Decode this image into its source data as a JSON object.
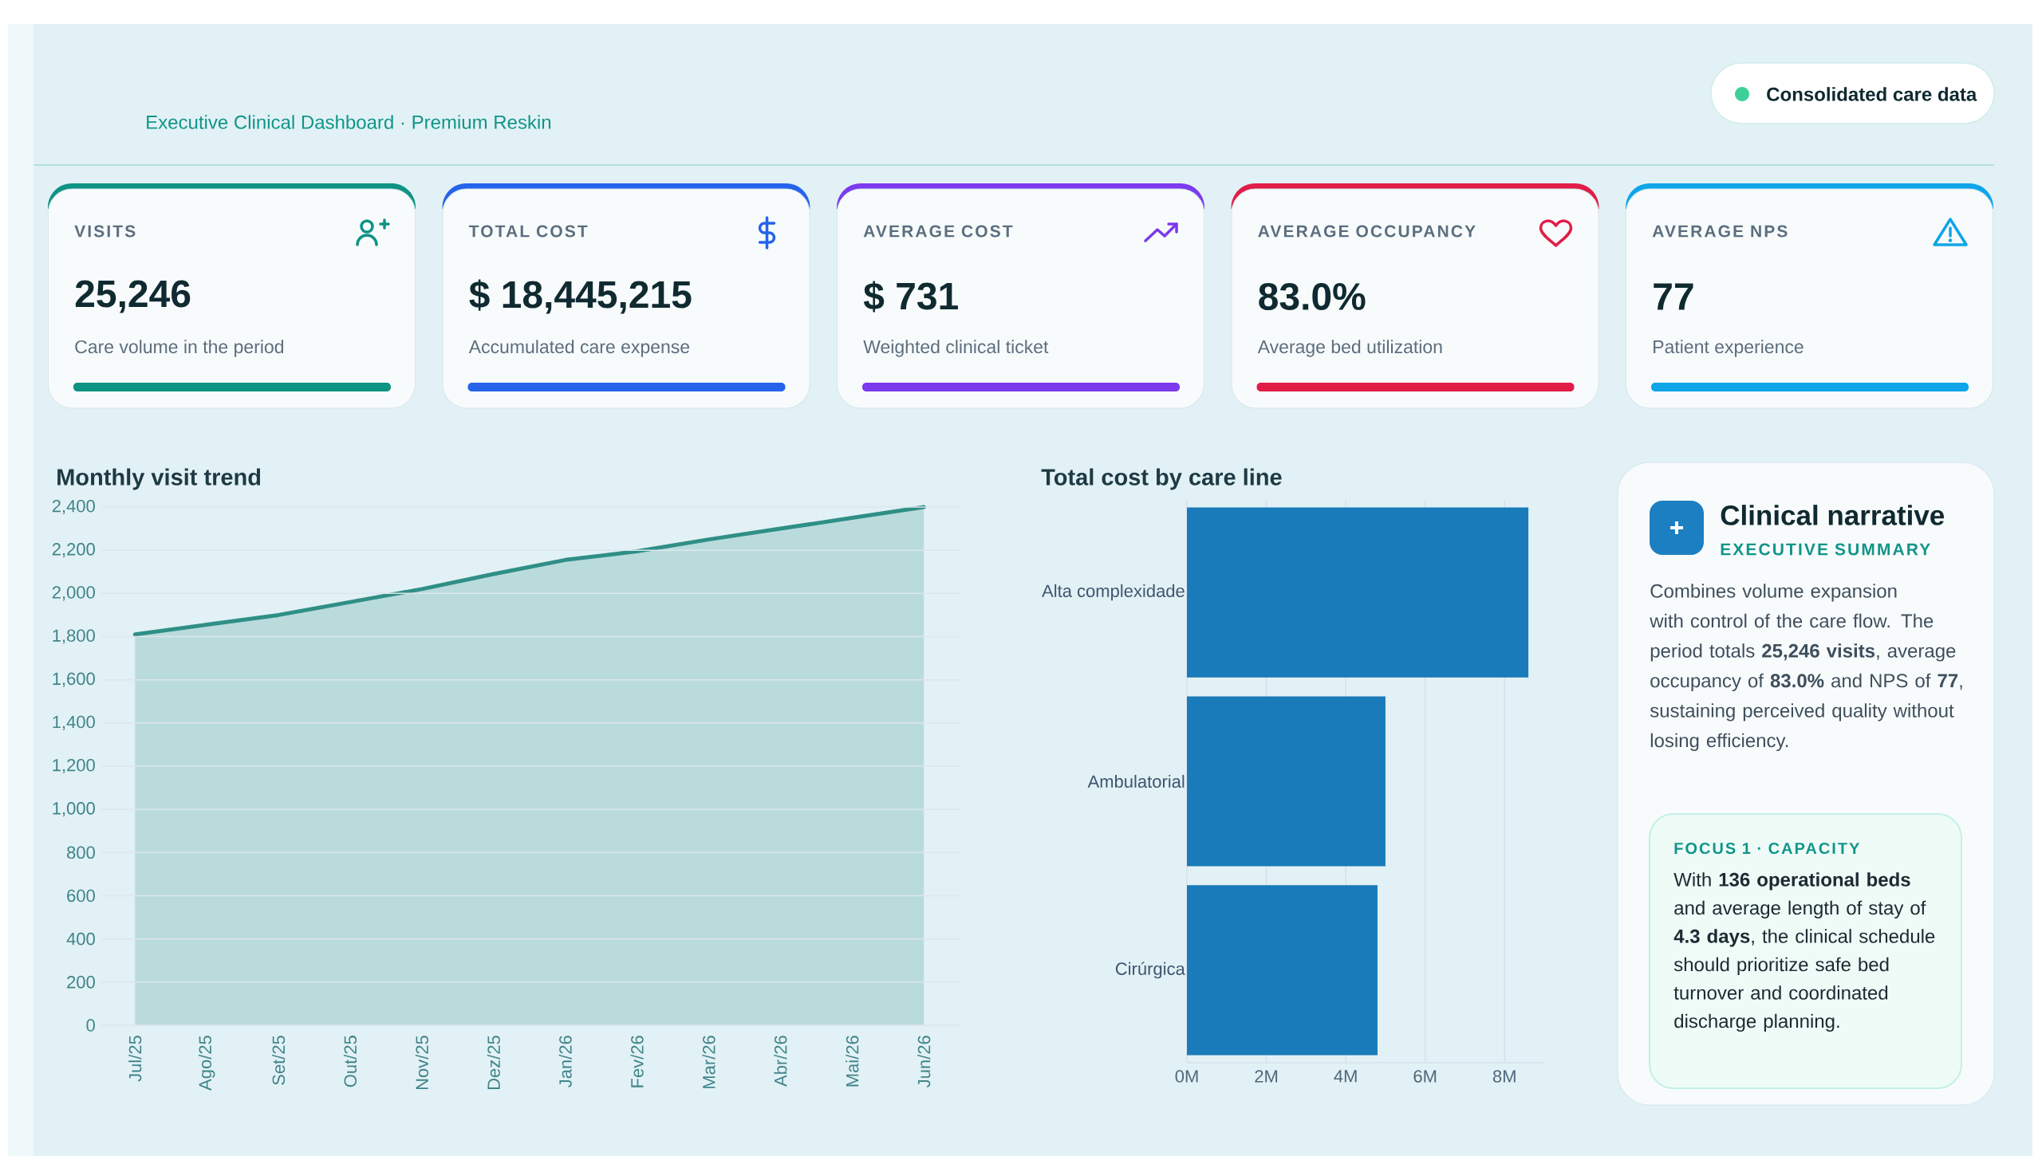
{
  "chart_data": [
    {
      "type": "other",
      "subtitle": "Executive Clinical Dashboard · Premium Reskin",
      "annotations": [
        "Consolidated care data"
      ]
    },
    {
      "type": "other",
      "title": "VISITS",
      "annotations": [
        "25,246",
        "Care volume in the period"
      ],
      "color": "#0e9384"
    },
    {
      "type": "other",
      "title": "TOTAL COST",
      "annotations": [
        "$ 18,445,215",
        "Accumulated care expense"
      ],
      "color": "#2563eb"
    },
    {
      "type": "other",
      "title": "AVERAGE COST",
      "annotations": [
        "$ 731",
        "Weighted clinical ticket"
      ],
      "color": "#7c3aed"
    },
    {
      "type": "other",
      "title": "AVERAGE OCCUPANCY",
      "annotations": [
        "83.0%",
        "Average bed utilization"
      ],
      "color": "#e11d48"
    },
    {
      "type": "other",
      "title": "AVERAGE NPS",
      "annotations": [
        "77",
        "Patient experience"
      ],
      "color": "#0ea5e9"
    },
    {
      "type": "area",
      "title": "Monthly visit trend",
      "categories": [
        "Jul/25",
        "Ago/25",
        "Set/25",
        "Out/25",
        "Nov/25",
        "Dez/25",
        "Jan/26",
        "Fev/26",
        "Mar/26",
        "Abr/26",
        "Mai/26",
        "Jun/26"
      ],
      "values": [
        1810,
        1855,
        1900,
        1960,
        2020,
        2090,
        2155,
        2195,
        2250,
        2300,
        2350,
        2400
      ],
      "color": "#2f8f86",
      "ylim": [
        0,
        2400
      ],
      "yticks": [
        0,
        200,
        400,
        600,
        800,
        {
          "value": 1000,
          "label": "1,000"
        },
        {
          "value": 1200,
          "label": "1,200"
        },
        {
          "value": 1400,
          "label": "1,400"
        },
        {
          "value": 1600,
          "label": "1,600"
        },
        {
          "value": 1800,
          "label": "1,800"
        },
        {
          "value": 2000,
          "label": "2,000"
        },
        {
          "value": 2200,
          "label": "2,200"
        },
        {
          "value": 2400,
          "label": "2,400"
        }
      ],
      "grid": "y"
    },
    {
      "type": "bar",
      "orientation": "horizontal",
      "title": "Total cost by care line",
      "categories": [
        "Alta complexidade",
        "Ambulatorial",
        "Cirúrgica"
      ],
      "values": [
        8.6,
        5.0,
        4.8
      ],
      "color": "#197bb9",
      "xlim": [
        0,
        9
      ],
      "xticks": [
        {
          "value": 0,
          "label": "0M"
        },
        {
          "value": 2,
          "label": "2M"
        },
        {
          "value": 4,
          "label": "4M"
        },
        {
          "value": 6,
          "label": "6M"
        },
        {
          "value": 8,
          "label": "8M"
        }
      ],
      "grid": "x"
    },
    {
      "type": "other",
      "title": "Clinical narrative",
      "subtitle": "EXECUTIVE SUMMARY",
      "annotations": [
        "Combines volume expansion with control of the care flow. The period totals **25,246 visits**, average occupancy of **83.0%** and NPS of **77**, sustaining perceived quality without losing efficiency.",
        "FOCUS 1 · CAPACITY",
        "With **136 operational beds** and average length of stay of **4.3 days**, the clinical schedule should prioritize safe bed turnover and coordinated discharge planning."
      ]
    }
  ]
}
